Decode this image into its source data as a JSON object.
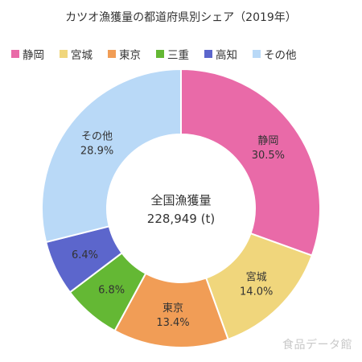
{
  "chart_data": {
    "type": "pie",
    "title": "カツオ漁獲量の都道府県別シェア（2019年）",
    "center_label": "全国漁獲量",
    "center_value": "228,949 (t)",
    "legend_position": "top",
    "slices": [
      {
        "label": "静岡",
        "value": 30.5,
        "value_label": "30.5%",
        "color": "#e96aa8"
      },
      {
        "label": "宮城",
        "value": 14.0,
        "value_label": "14.0%",
        "color": "#f0d67c"
      },
      {
        "label": "東京",
        "value": 13.4,
        "value_label": "13.4%",
        "color": "#f19d56"
      },
      {
        "label": "三重",
        "value": 6.8,
        "value_label": "6.8%",
        "color": "#64b834"
      },
      {
        "label": "高知",
        "value": 6.4,
        "value_label": "6.4%",
        "color": "#5c66cc"
      },
      {
        "label": "その他",
        "value": 28.9,
        "value_label": "28.9%",
        "color": "#b9d9f7"
      }
    ]
  },
  "watermark": "食品データ館"
}
